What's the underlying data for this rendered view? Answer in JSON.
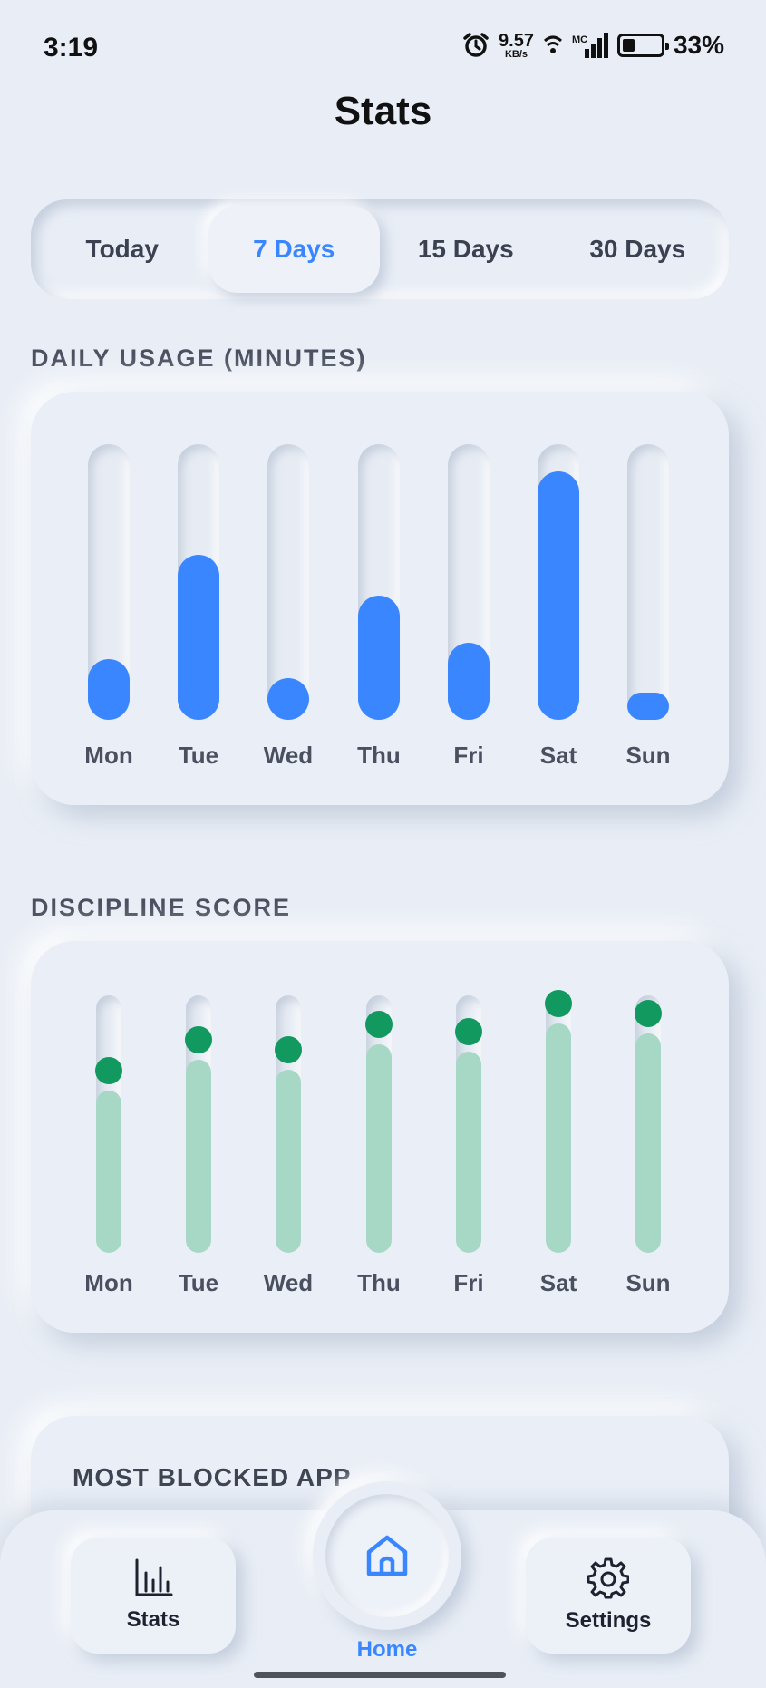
{
  "status_bar": {
    "time": "3:19",
    "net_speed_value": "9.57",
    "net_speed_unit": "KB/s",
    "signal_label": "MC",
    "battery_percent": "33%",
    "battery_level": 0.33
  },
  "page": {
    "title": "Stats"
  },
  "range_tabs": [
    {
      "label": "Today",
      "active": false
    },
    {
      "label": "7 Days",
      "active": true
    },
    {
      "label": "15 Days",
      "active": false
    },
    {
      "label": "30 Days",
      "active": false
    }
  ],
  "usage": {
    "section_label": "DAILY USAGE (MINUTES)",
    "days": [
      "Mon",
      "Tue",
      "Wed",
      "Thu",
      "Fri",
      "Sat",
      "Sun"
    ],
    "values": [
      0.22,
      0.6,
      0.15,
      0.45,
      0.28,
      0.9,
      0.1
    ],
    "color": "#3a86ff"
  },
  "discipline": {
    "section_label": "DISCIPLINE SCORE",
    "days": [
      "Mon",
      "Tue",
      "Wed",
      "Thu",
      "Fri",
      "Sat",
      "Sun"
    ],
    "values": [
      0.73,
      0.85,
      0.81,
      0.91,
      0.88,
      0.99,
      0.95
    ],
    "fill_color": "#a7d8c5",
    "dot_color": "#11995f"
  },
  "blocked": {
    "title": "MOST BLOCKED APP"
  },
  "bottom_nav": {
    "stats_label": "Stats",
    "home_label": "Home",
    "settings_label": "Settings"
  }
}
